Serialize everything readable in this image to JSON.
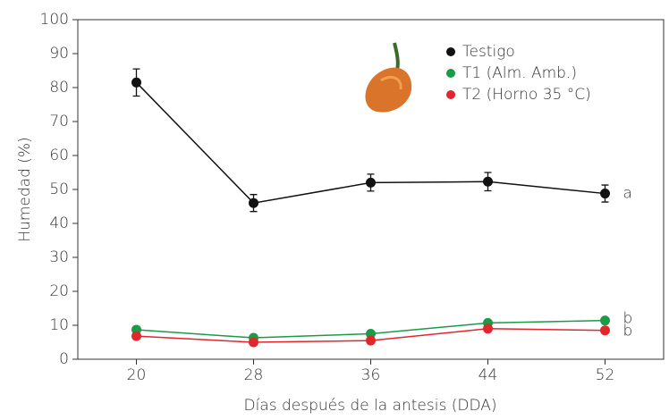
{
  "chart_data": {
    "type": "line",
    "x_label": "Días después de la antesis (DDA)",
    "y_label": "Humedad (%)",
    "x": [
      20,
      28,
      36,
      44,
      52
    ],
    "xlim": [
      16,
      56
    ],
    "xticks": [
      20,
      28,
      36,
      44,
      52
    ],
    "ylim": [
      0,
      100
    ],
    "yticks": [
      0,
      10,
      20,
      30,
      40,
      50,
      60,
      70,
      80,
      90,
      100
    ],
    "series": [
      {
        "name": "Testigo",
        "color": "#111111",
        "values": [
          81.5,
          46,
          52,
          52.3,
          48.8
        ],
        "errors": [
          4,
          2.5,
          2.5,
          2.7,
          2.5
        ]
      },
      {
        "name": "T1 (Alm. Amb.)",
        "color": "#1b9a48",
        "values": [
          8.7,
          6.3,
          7.5,
          10.7,
          11.4
        ]
      },
      {
        "name": "T2 (Horno 35 °C)",
        "color": "#e1262c",
        "values": [
          6.8,
          5.0,
          5.5,
          9.0,
          8.5
        ]
      }
    ],
    "annotations": [
      "a",
      "b",
      "b"
    ]
  }
}
